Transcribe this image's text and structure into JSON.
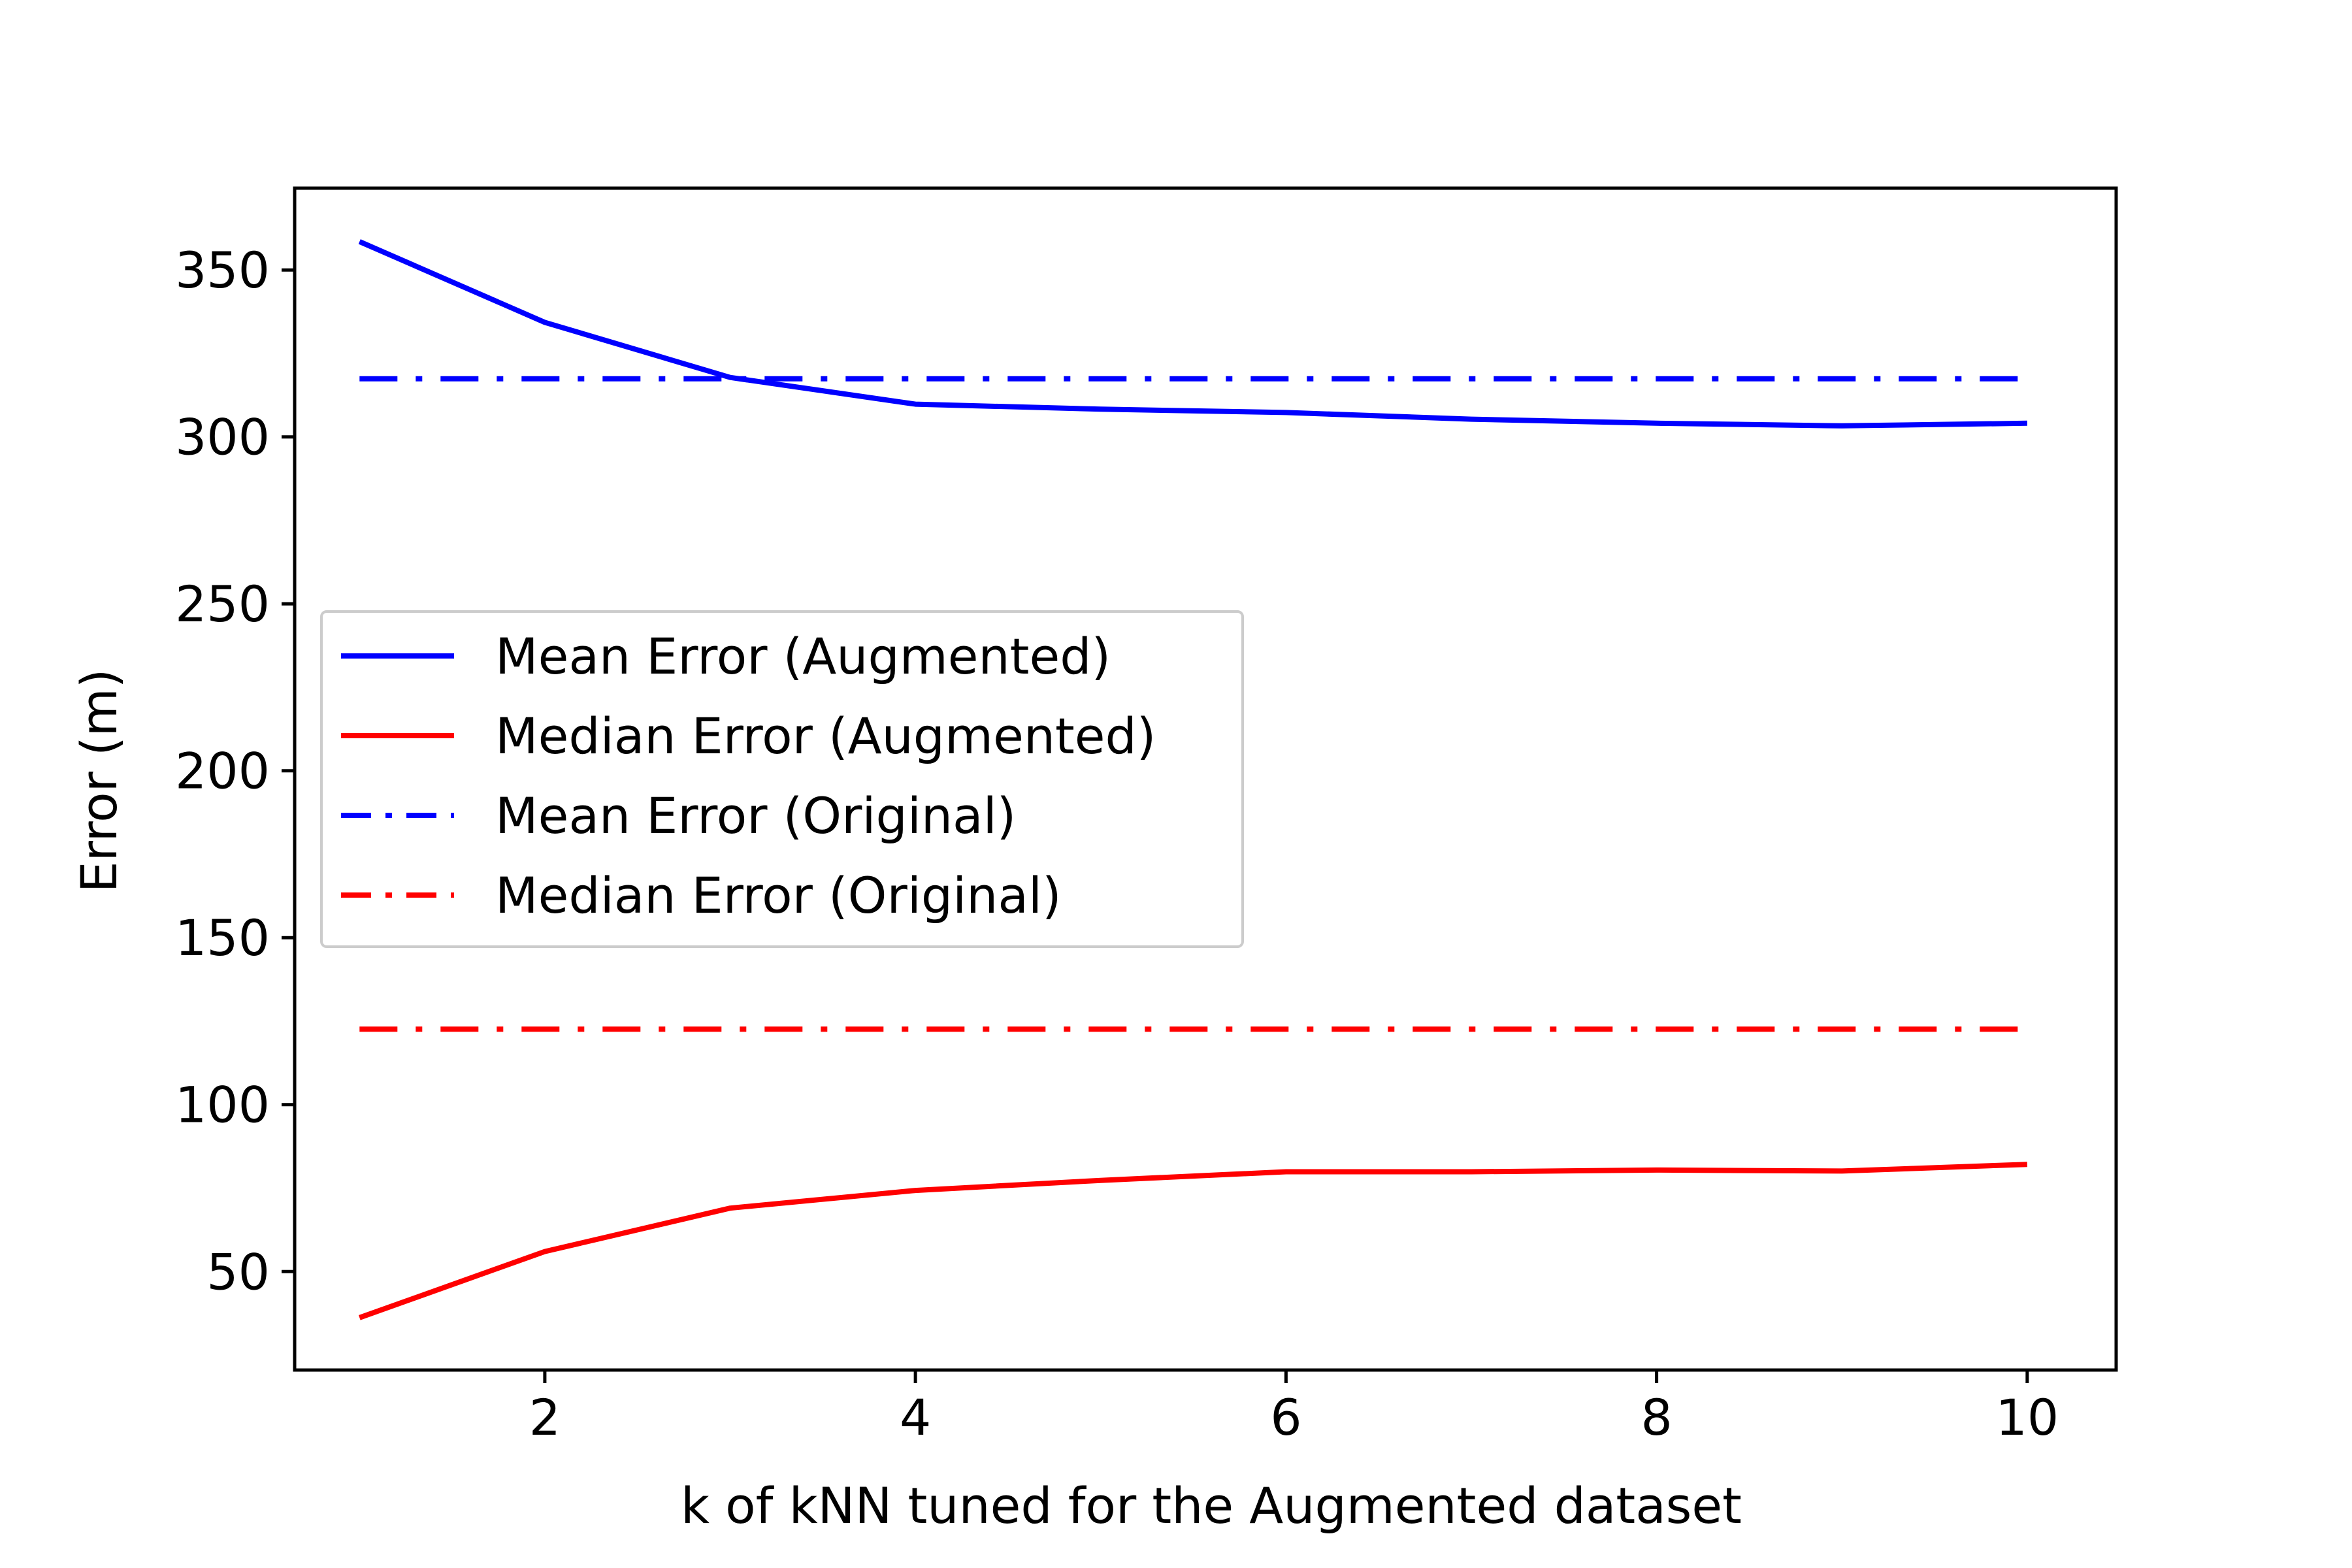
{
  "chart_data": {
    "type": "line",
    "title": "",
    "xlabel": "k of kNN tuned for the Augmented dataset",
    "ylabel": "Error (m)",
    "xlim": [
      0.65,
      10.48
    ],
    "ylim": [
      20.5,
      374.5
    ],
    "xticks": [
      2,
      4,
      6,
      8,
      10
    ],
    "yticks": [
      50,
      100,
      150,
      200,
      250,
      300,
      350
    ],
    "grid": false,
    "legend_position": "center-left",
    "x": [
      1,
      2,
      3,
      4,
      5,
      6,
      7,
      8,
      9,
      10
    ],
    "series": [
      {
        "name": "Mean Error (Augmented)",
        "color": "#0000ff",
        "style": "solid",
        "values": [
          358.5,
          334.3,
          317.8,
          309.8,
          308.3,
          307.3,
          305.3,
          304.1,
          303.3,
          304.1
        ]
      },
      {
        "name": "Median Error (Augmented)",
        "color": "#ff0000",
        "style": "solid",
        "values": [
          36.2,
          56.0,
          69.0,
          74.3,
          77.3,
          79.9,
          79.9,
          80.4,
          80.1,
          82.1
        ]
      },
      {
        "name": "Mean Error (Original)",
        "color": "#0000ff",
        "style": "dashdot",
        "values": [
          317.4,
          317.4,
          317.4,
          317.4,
          317.4,
          317.4,
          317.4,
          317.4,
          317.4,
          317.4
        ]
      },
      {
        "name": "Median Error (Original)",
        "color": "#ff0000",
        "style": "dashdot",
        "values": [
          122.6,
          122.6,
          122.6,
          122.6,
          122.6,
          122.6,
          122.6,
          122.6,
          122.6,
          122.6
        ]
      }
    ]
  }
}
